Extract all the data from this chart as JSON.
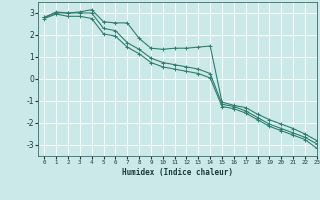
{
  "title": "",
  "xlabel": "Humidex (Indice chaleur)",
  "ylabel": "",
  "xlim": [
    -0.5,
    23
  ],
  "ylim": [
    -3.5,
    3.5
  ],
  "yticks": [
    -3,
    -2,
    -1,
    0,
    1,
    2,
    3
  ],
  "xticks": [
    0,
    1,
    2,
    3,
    4,
    5,
    6,
    7,
    8,
    9,
    10,
    11,
    12,
    13,
    14,
    15,
    16,
    17,
    18,
    19,
    20,
    21,
    22,
    23
  ],
  "background_color": "#cce9e9",
  "grid_color": "#ffffff",
  "line_color": "#2e7d6e",
  "line1_x": [
    0,
    1,
    2,
    3,
    4,
    5,
    6,
    7,
    8,
    9,
    10,
    11,
    12,
    13,
    14,
    15,
    16,
    17,
    18,
    19,
    20,
    21,
    22,
    23
  ],
  "line1_y": [
    2.8,
    3.05,
    3.0,
    3.05,
    3.15,
    2.6,
    2.55,
    2.55,
    1.85,
    1.4,
    1.35,
    1.4,
    1.4,
    1.45,
    1.5,
    -1.05,
    -1.2,
    -1.3,
    -1.6,
    -1.85,
    -2.05,
    -2.25,
    -2.5,
    -2.8
  ],
  "line2_x": [
    0,
    1,
    2,
    3,
    4,
    5,
    6,
    7,
    8,
    9,
    10,
    11,
    12,
    13,
    14,
    15,
    16,
    17,
    18,
    19,
    20,
    21,
    22,
    23
  ],
  "line2_y": [
    2.8,
    3.0,
    3.0,
    3.0,
    3.0,
    2.3,
    2.2,
    1.65,
    1.35,
    0.95,
    0.75,
    0.65,
    0.55,
    0.45,
    0.25,
    -1.15,
    -1.25,
    -1.45,
    -1.75,
    -2.05,
    -2.25,
    -2.45,
    -2.65,
    -2.95
  ],
  "line3_x": [
    0,
    1,
    2,
    3,
    4,
    5,
    6,
    7,
    8,
    9,
    10,
    11,
    12,
    13,
    14,
    15,
    16,
    17,
    18,
    19,
    20,
    21,
    22,
    23
  ],
  "line3_y": [
    2.75,
    2.95,
    2.85,
    2.85,
    2.75,
    2.05,
    1.95,
    1.45,
    1.15,
    0.75,
    0.55,
    0.45,
    0.35,
    0.25,
    0.05,
    -1.25,
    -1.35,
    -1.55,
    -1.85,
    -2.15,
    -2.35,
    -2.55,
    -2.75,
    -3.15
  ]
}
